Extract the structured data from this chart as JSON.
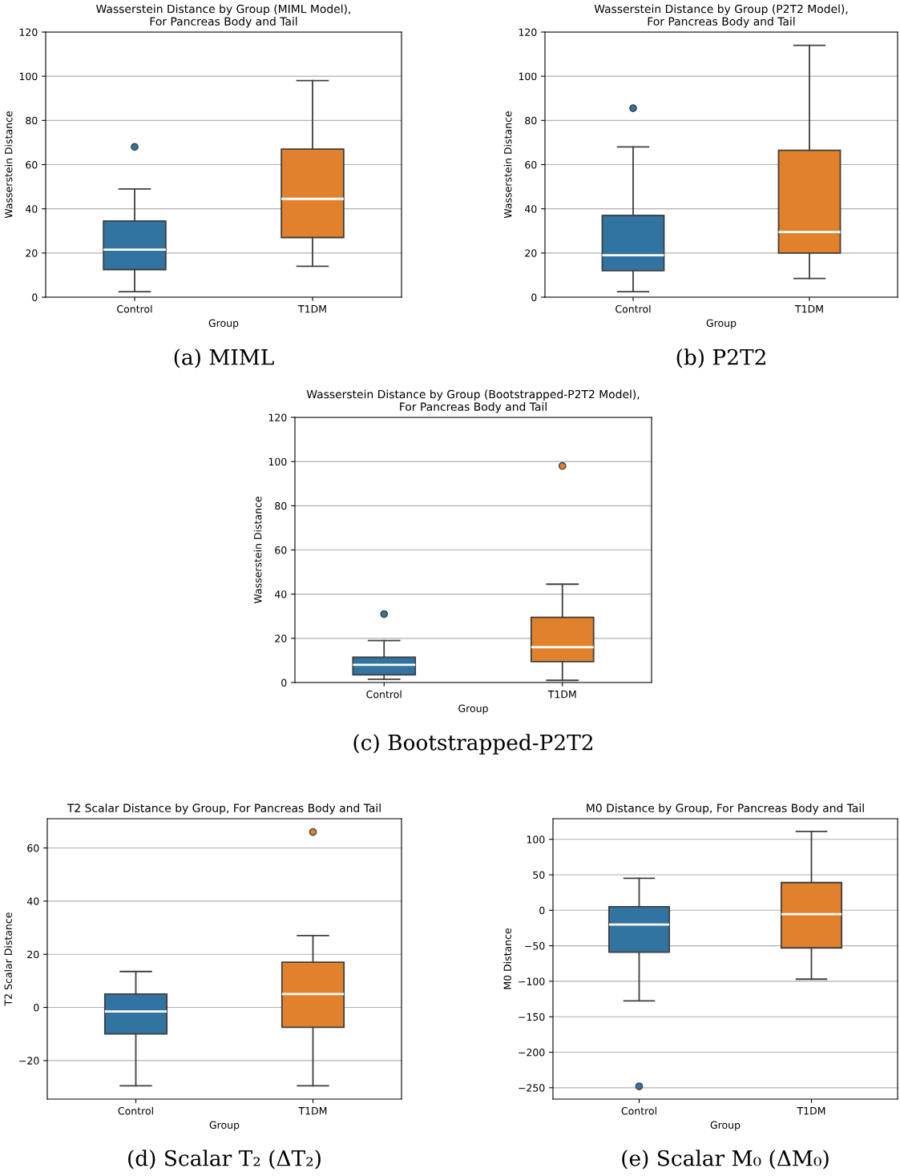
{
  "chart_data": [
    {
      "type": "box",
      "title": "Wasserstein Distance by Group (MIML Model),\nFor Pancreas Body and Tail",
      "xlabel": "Group",
      "ylabel": "Wasserstein Distance",
      "categories": [
        "Control",
        "T1DM"
      ],
      "colors": [
        "#3274a1",
        "#e1812c"
      ],
      "ylim": [
        0,
        120
      ],
      "yticks": [
        0,
        20,
        40,
        60,
        80,
        100,
        120
      ],
      "grid": "y",
      "annotations": [
        "(a) MIML"
      ],
      "boxes": [
        {
          "low": 2.5,
          "q1": 12.5,
          "median": 21.5,
          "q3": 34.5,
          "high": 49,
          "outliers": [
            68
          ]
        },
        {
          "low": 14,
          "q1": 27,
          "median": 44.5,
          "q3": 67,
          "high": 98
        }
      ]
    },
    {
      "type": "box",
      "title": "Wasserstein Distance by Group (P2T2 Model),\nFor Pancreas Body and Tail",
      "xlabel": "Group",
      "ylabel": "Wasserstein Distance",
      "categories": [
        "Control",
        "T1DM"
      ],
      "colors": [
        "#3274a1",
        "#e1812c"
      ],
      "ylim": [
        0,
        120
      ],
      "yticks": [
        0,
        20,
        40,
        60,
        80,
        100,
        120
      ],
      "grid": "y",
      "annotations": [
        "(b) P2T2"
      ],
      "boxes": [
        {
          "low": 2.5,
          "q1": 12,
          "median": 19,
          "q3": 37,
          "high": 68,
          "outliers": [
            85.5
          ]
        },
        {
          "low": 8.5,
          "q1": 20,
          "median": 29.5,
          "q3": 66.5,
          "high": 114
        }
      ]
    },
    {
      "type": "box",
      "title": "Wasserstein Distance by Group (Bootstrapped-P2T2 Model),\nFor Pancreas Body and Tail",
      "xlabel": "Group",
      "ylabel": "Wasserstein Distance",
      "categories": [
        "Control",
        "T1DM"
      ],
      "colors": [
        "#3274a1",
        "#e1812c"
      ],
      "ylim": [
        0,
        120
      ],
      "yticks": [
        0,
        20,
        40,
        60,
        80,
        100,
        120
      ],
      "grid": "y",
      "annotations": [
        "(c) Bootstrapped-P2T2"
      ],
      "boxes": [
        {
          "low": 1.5,
          "q1": 3.5,
          "median": 8,
          "q3": 11.5,
          "high": 19,
          "outliers": [
            31
          ]
        },
        {
          "low": 1,
          "q1": 9.5,
          "median": 16,
          "q3": 29.5,
          "high": 44.5,
          "outliers": [
            98
          ]
        }
      ]
    },
    {
      "type": "box",
      "title": "T2 Scalar Distance by Group, For Pancreas Body and Tail",
      "xlabel": "Group",
      "ylabel": "T2 Scalar Distance",
      "categories": [
        "Control",
        "T1DM"
      ],
      "colors": [
        "#3274a1",
        "#e1812c"
      ],
      "ylim": [
        -34.5,
        71
      ],
      "yticks": [
        {
          "value": -20,
          "label": "−20"
        },
        0,
        20,
        40,
        60
      ],
      "grid": "y",
      "annotations": [
        "(d) Scalar T₂ (ΔT₂)"
      ],
      "boxes": [
        {
          "low": -29.5,
          "q1": -10,
          "median": -1.5,
          "q3": 5,
          "high": 13.5
        },
        {
          "low": -29.5,
          "q1": -7.5,
          "median": 5,
          "q3": 17,
          "high": 27,
          "outliers": [
            66
          ]
        }
      ]
    },
    {
      "type": "box",
      "title": "M0 Distance by Group, For Pancreas Body and Tail",
      "xlabel": "Group",
      "ylabel": "M0 Distance",
      "categories": [
        "Control",
        "T1DM"
      ],
      "colors": [
        "#3274a1",
        "#e1812c"
      ],
      "ylim": [
        -266,
        129
      ],
      "yticks": [
        {
          "value": -250,
          "label": "−250"
        },
        {
          "value": -200,
          "label": "−200"
        },
        {
          "value": -150,
          "label": "−150"
        },
        {
          "value": -100,
          "label": "−100"
        },
        {
          "value": -50,
          "label": "−50"
        },
        0,
        50,
        100
      ],
      "grid": "y",
      "annotations": [
        "(e) Scalar M₀ (ΔM₀)"
      ],
      "boxes": [
        {
          "low": -127.5,
          "q1": -59,
          "median": -20,
          "q3": 5,
          "high": 45,
          "outliers": [
            -248
          ]
        },
        {
          "low": -97,
          "q1": -53,
          "median": -5.5,
          "q3": 39,
          "high": 111
        }
      ]
    }
  ]
}
